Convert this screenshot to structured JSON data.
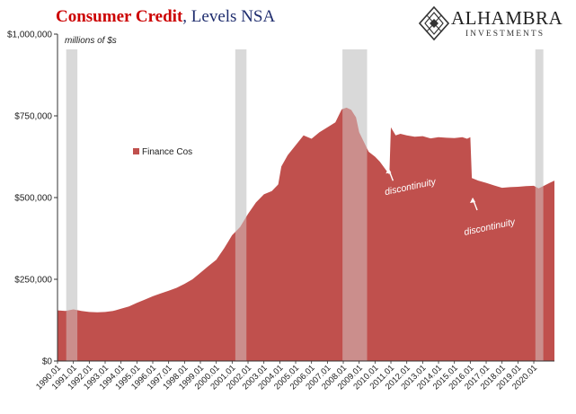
{
  "header": {
    "title_main": "Consumer Credit",
    "title_rest": ", Levels NSA"
  },
  "logo": {
    "name": "ALHAMBRA",
    "tagline": "INVESTMENTS",
    "icon": "diamond-lattice-icon"
  },
  "colors": {
    "series": "#c0504d",
    "recession": "#d9d9d9",
    "title_red": "#cc0000",
    "title_blue": "#1f2d6e",
    "axis": "#333333"
  },
  "chart_data": {
    "type": "area",
    "title": "Consumer Credit, Levels NSA",
    "unit_label": "millions of $s",
    "ylabel": "",
    "xlabel": "",
    "ylim": [
      0,
      1000000
    ],
    "xlim": [
      1990.0,
      2021.3
    ],
    "grid": false,
    "legend_position": "left-middle",
    "y_ticks": [
      {
        "value": 0,
        "label": "$0"
      },
      {
        "value": 250000,
        "label": "$250,000"
      },
      {
        "value": 500000,
        "label": "$500,000"
      },
      {
        "value": 750000,
        "label": "$750,000"
      },
      {
        "value": 1000000,
        "label": "$1,000,000"
      }
    ],
    "x_tick_labels": [
      "1990.01",
      "1991.01",
      "1992.01",
      "1993.01",
      "1994.01",
      "1995.01",
      "1996.01",
      "1997.01",
      "1998.01",
      "1999.01",
      "2000.01",
      "2001.01",
      "2002.01",
      "2003.01",
      "2004.01",
      "2005.01",
      "2006.01",
      "2007.01",
      "2008.01",
      "2009.01",
      "2010.01",
      "2011.01",
      "2012.01",
      "2013.01",
      "2014.01",
      "2015.01",
      "2016.01",
      "2017.01",
      "2018.01",
      "2019.01",
      "2020.01"
    ],
    "recession_shading": [
      [
        1990.55,
        1991.25
      ],
      [
        2001.2,
        2001.9
      ],
      [
        2007.95,
        2009.5
      ],
      [
        2020.1,
        2020.6
      ]
    ],
    "series": [
      {
        "name": "Finance Cos",
        "x": [
          1990.0,
          1990.5,
          1991.0,
          1991.5,
          1992.0,
          1992.5,
          1993.0,
          1993.5,
          1994.0,
          1994.5,
          1995.0,
          1995.5,
          1996.0,
          1996.5,
          1997.0,
          1997.5,
          1998.0,
          1998.5,
          1999.0,
          1999.5,
          2000.0,
          2000.5,
          2001.0,
          2001.5,
          2002.0,
          2002.5,
          2003.0,
          2003.5,
          2003.9,
          2004.1,
          2004.5,
          2005.0,
          2005.5,
          2006.0,
          2006.5,
          2007.0,
          2007.5,
          2007.9,
          2008.2,
          2008.5,
          2008.8,
          2009.0,
          2009.3,
          2009.6,
          2010.0,
          2010.3,
          2010.6,
          2010.9,
          2011.0,
          2011.3,
          2011.6,
          2012.0,
          2012.5,
          2013.0,
          2013.5,
          2014.0,
          2014.5,
          2015.0,
          2015.5,
          2015.8,
          2016.0,
          2016.1,
          2016.5,
          2017.0,
          2017.5,
          2018.0,
          2018.5,
          2019.0,
          2019.5,
          2020.0,
          2020.3,
          2020.6,
          2021.0,
          2021.3
        ],
        "values": [
          155000,
          153000,
          158000,
          153000,
          150000,
          149000,
          150000,
          153000,
          160000,
          167000,
          178000,
          188000,
          198000,
          207000,
          215000,
          224000,
          236000,
          250000,
          270000,
          290000,
          310000,
          345000,
          385000,
          410000,
          450000,
          485000,
          510000,
          520000,
          540000,
          595000,
          630000,
          660000,
          690000,
          680000,
          700000,
          715000,
          730000,
          770000,
          775000,
          768000,
          745000,
          700000,
          670000,
          640000,
          625000,
          610000,
          590000,
          570000,
          715000,
          690000,
          695000,
          690000,
          686000,
          688000,
          681000,
          685000,
          683000,
          682000,
          685000,
          680000,
          685000,
          560000,
          552000,
          545000,
          537000,
          530000,
          532000,
          533000,
          535000,
          536000,
          528000,
          535000,
          545000,
          552000
        ]
      }
    ],
    "annotations": [
      {
        "text": "discontinuity",
        "x": 2011.1,
        "value": 590000
      },
      {
        "text": "discontinuity",
        "x": 2016.2,
        "value": 500000
      }
    ]
  }
}
